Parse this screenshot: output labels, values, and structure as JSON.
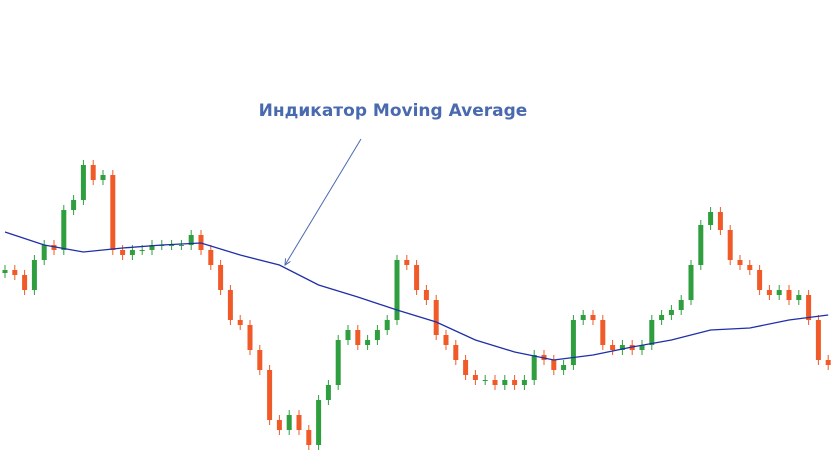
{
  "chart_data": {
    "type": "candlestick",
    "annotation": "Индикатор Moving Average",
    "ylim": [
      0,
      473
    ],
    "up_color": "#2e9e3e",
    "down_color": "#f05a28",
    "ma_color": "#1f2fa8",
    "annotation_color": "#4a6aaf",
    "open": [
      200,
      203,
      198,
      183,
      213,
      228,
      223,
      263,
      273,
      308,
      293,
      298,
      223,
      218,
      223,
      223,
      228,
      228,
      228,
      228,
      238,
      223,
      208,
      183,
      153,
      148,
      123,
      103,
      53,
      43,
      58,
      43,
      28,
      73,
      88,
      133,
      143,
      128,
      133,
      143,
      153,
      213,
      208,
      183,
      173,
      138,
      128,
      113,
      98,
      93,
      93,
      88,
      93,
      88,
      93,
      118,
      113,
      103,
      108,
      153,
      158,
      153,
      128,
      123,
      128,
      123,
      128,
      153,
      158,
      163,
      173,
      208,
      248,
      261,
      243,
      213,
      208,
      203,
      183,
      178,
      183,
      173,
      178,
      153,
      113
    ],
    "high": [
      208,
      208,
      203,
      218,
      233,
      233,
      268,
      278,
      313,
      313,
      303,
      303,
      228,
      228,
      228,
      233,
      233,
      233,
      233,
      243,
      243,
      228,
      213,
      188,
      158,
      153,
      128,
      108,
      58,
      63,
      63,
      48,
      78,
      93,
      138,
      148,
      148,
      138,
      148,
      158,
      218,
      218,
      213,
      188,
      178,
      143,
      133,
      118,
      103,
      98,
      98,
      98,
      98,
      98,
      123,
      123,
      118,
      113,
      158,
      163,
      163,
      158,
      133,
      133,
      133,
      133,
      158,
      163,
      168,
      178,
      213,
      253,
      266,
      266,
      248,
      218,
      213,
      208,
      188,
      188,
      188,
      183,
      183,
      158,
      118
    ],
    "low": [
      195,
      193,
      178,
      178,
      208,
      218,
      218,
      258,
      268,
      288,
      288,
      218,
      213,
      213,
      218,
      218,
      223,
      223,
      223,
      223,
      218,
      203,
      178,
      148,
      143,
      118,
      98,
      48,
      38,
      38,
      38,
      23,
      23,
      68,
      83,
      128,
      123,
      123,
      128,
      138,
      148,
      203,
      178,
      168,
      133,
      123,
      108,
      93,
      88,
      88,
      83,
      83,
      83,
      83,
      88,
      108,
      98,
      98,
      103,
      148,
      148,
      123,
      118,
      118,
      118,
      118,
      123,
      148,
      153,
      158,
      168,
      203,
      243,
      238,
      208,
      203,
      198,
      178,
      173,
      173,
      168,
      168,
      148,
      108,
      103
    ],
    "close": [
      203,
      198,
      183,
      213,
      228,
      223,
      263,
      273,
      308,
      293,
      298,
      223,
      218,
      223,
      223,
      228,
      228,
      228,
      228,
      238,
      223,
      208,
      183,
      153,
      148,
      123,
      103,
      53,
      43,
      58,
      43,
      28,
      73,
      88,
      133,
      143,
      128,
      133,
      143,
      153,
      213,
      208,
      183,
      173,
      138,
      128,
      113,
      98,
      93,
      93,
      88,
      93,
      88,
      93,
      118,
      113,
      103,
      108,
      153,
      158,
      153,
      128,
      123,
      128,
      123,
      128,
      153,
      158,
      163,
      173,
      208,
      248,
      261,
      243,
      213,
      208,
      203,
      183,
      178,
      183,
      173,
      178,
      153,
      113,
      108
    ],
    "ma": {
      "x": [
        0,
        4,
        8,
        12,
        16,
        20,
        24,
        28,
        32,
        36,
        40,
        44,
        48,
        52,
        56,
        60,
        64,
        68,
        72,
        76,
        80,
        84
      ],
      "values": [
        241,
        228,
        221,
        225,
        228,
        230,
        218,
        208,
        188,
        176,
        163,
        151,
        133,
        121,
        113,
        118,
        126,
        133,
        143,
        145,
        153,
        158
      ]
    }
  }
}
